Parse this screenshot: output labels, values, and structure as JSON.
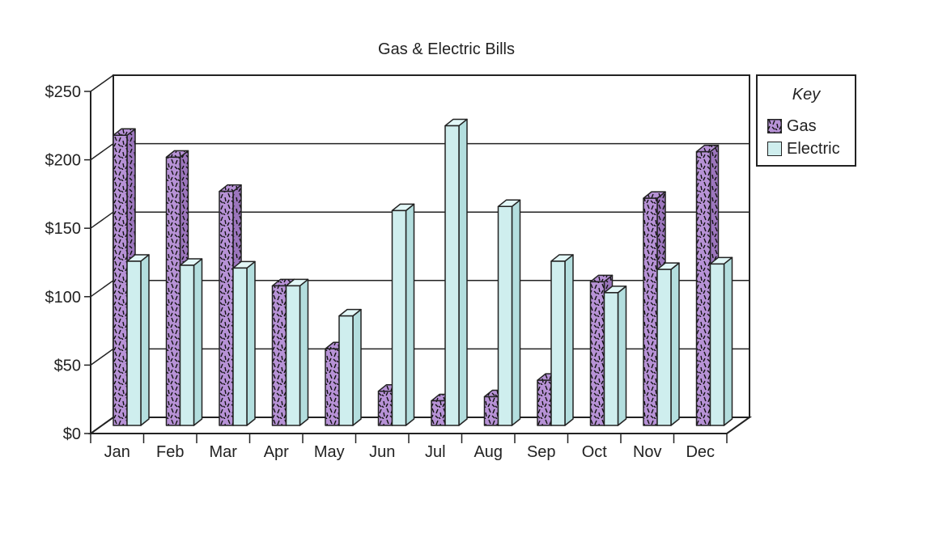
{
  "chart_data": {
    "type": "bar",
    "title": "Gas & Electric Bills",
    "categories": [
      "Jan",
      "Feb",
      "Mar",
      "Apr",
      "May",
      "Jun",
      "Jul",
      "Aug",
      "Sep",
      "Oct",
      "Nov",
      "Dec"
    ],
    "series": [
      {
        "name": "Gas",
        "values": [
          212,
          196,
          171,
          102,
          56,
          25,
          18,
          21,
          33,
          105,
          166,
          200
        ]
      },
      {
        "name": "Electric",
        "values": [
          120,
          117,
          115,
          102,
          80,
          157,
          219,
          160,
          120,
          97,
          114,
          118
        ]
      }
    ],
    "ylim": [
      0,
      250
    ],
    "yticks": [
      "$0",
      "$50",
      "$100",
      "$150",
      "$200",
      "$250"
    ],
    "grid": true,
    "legend": {
      "title": "Key",
      "placement": "right"
    },
    "colors": {
      "Gas": "#b792d6",
      "Electric": "#cfeeee",
      "outline": "#222222"
    },
    "style": "3d-clustered-bar"
  }
}
